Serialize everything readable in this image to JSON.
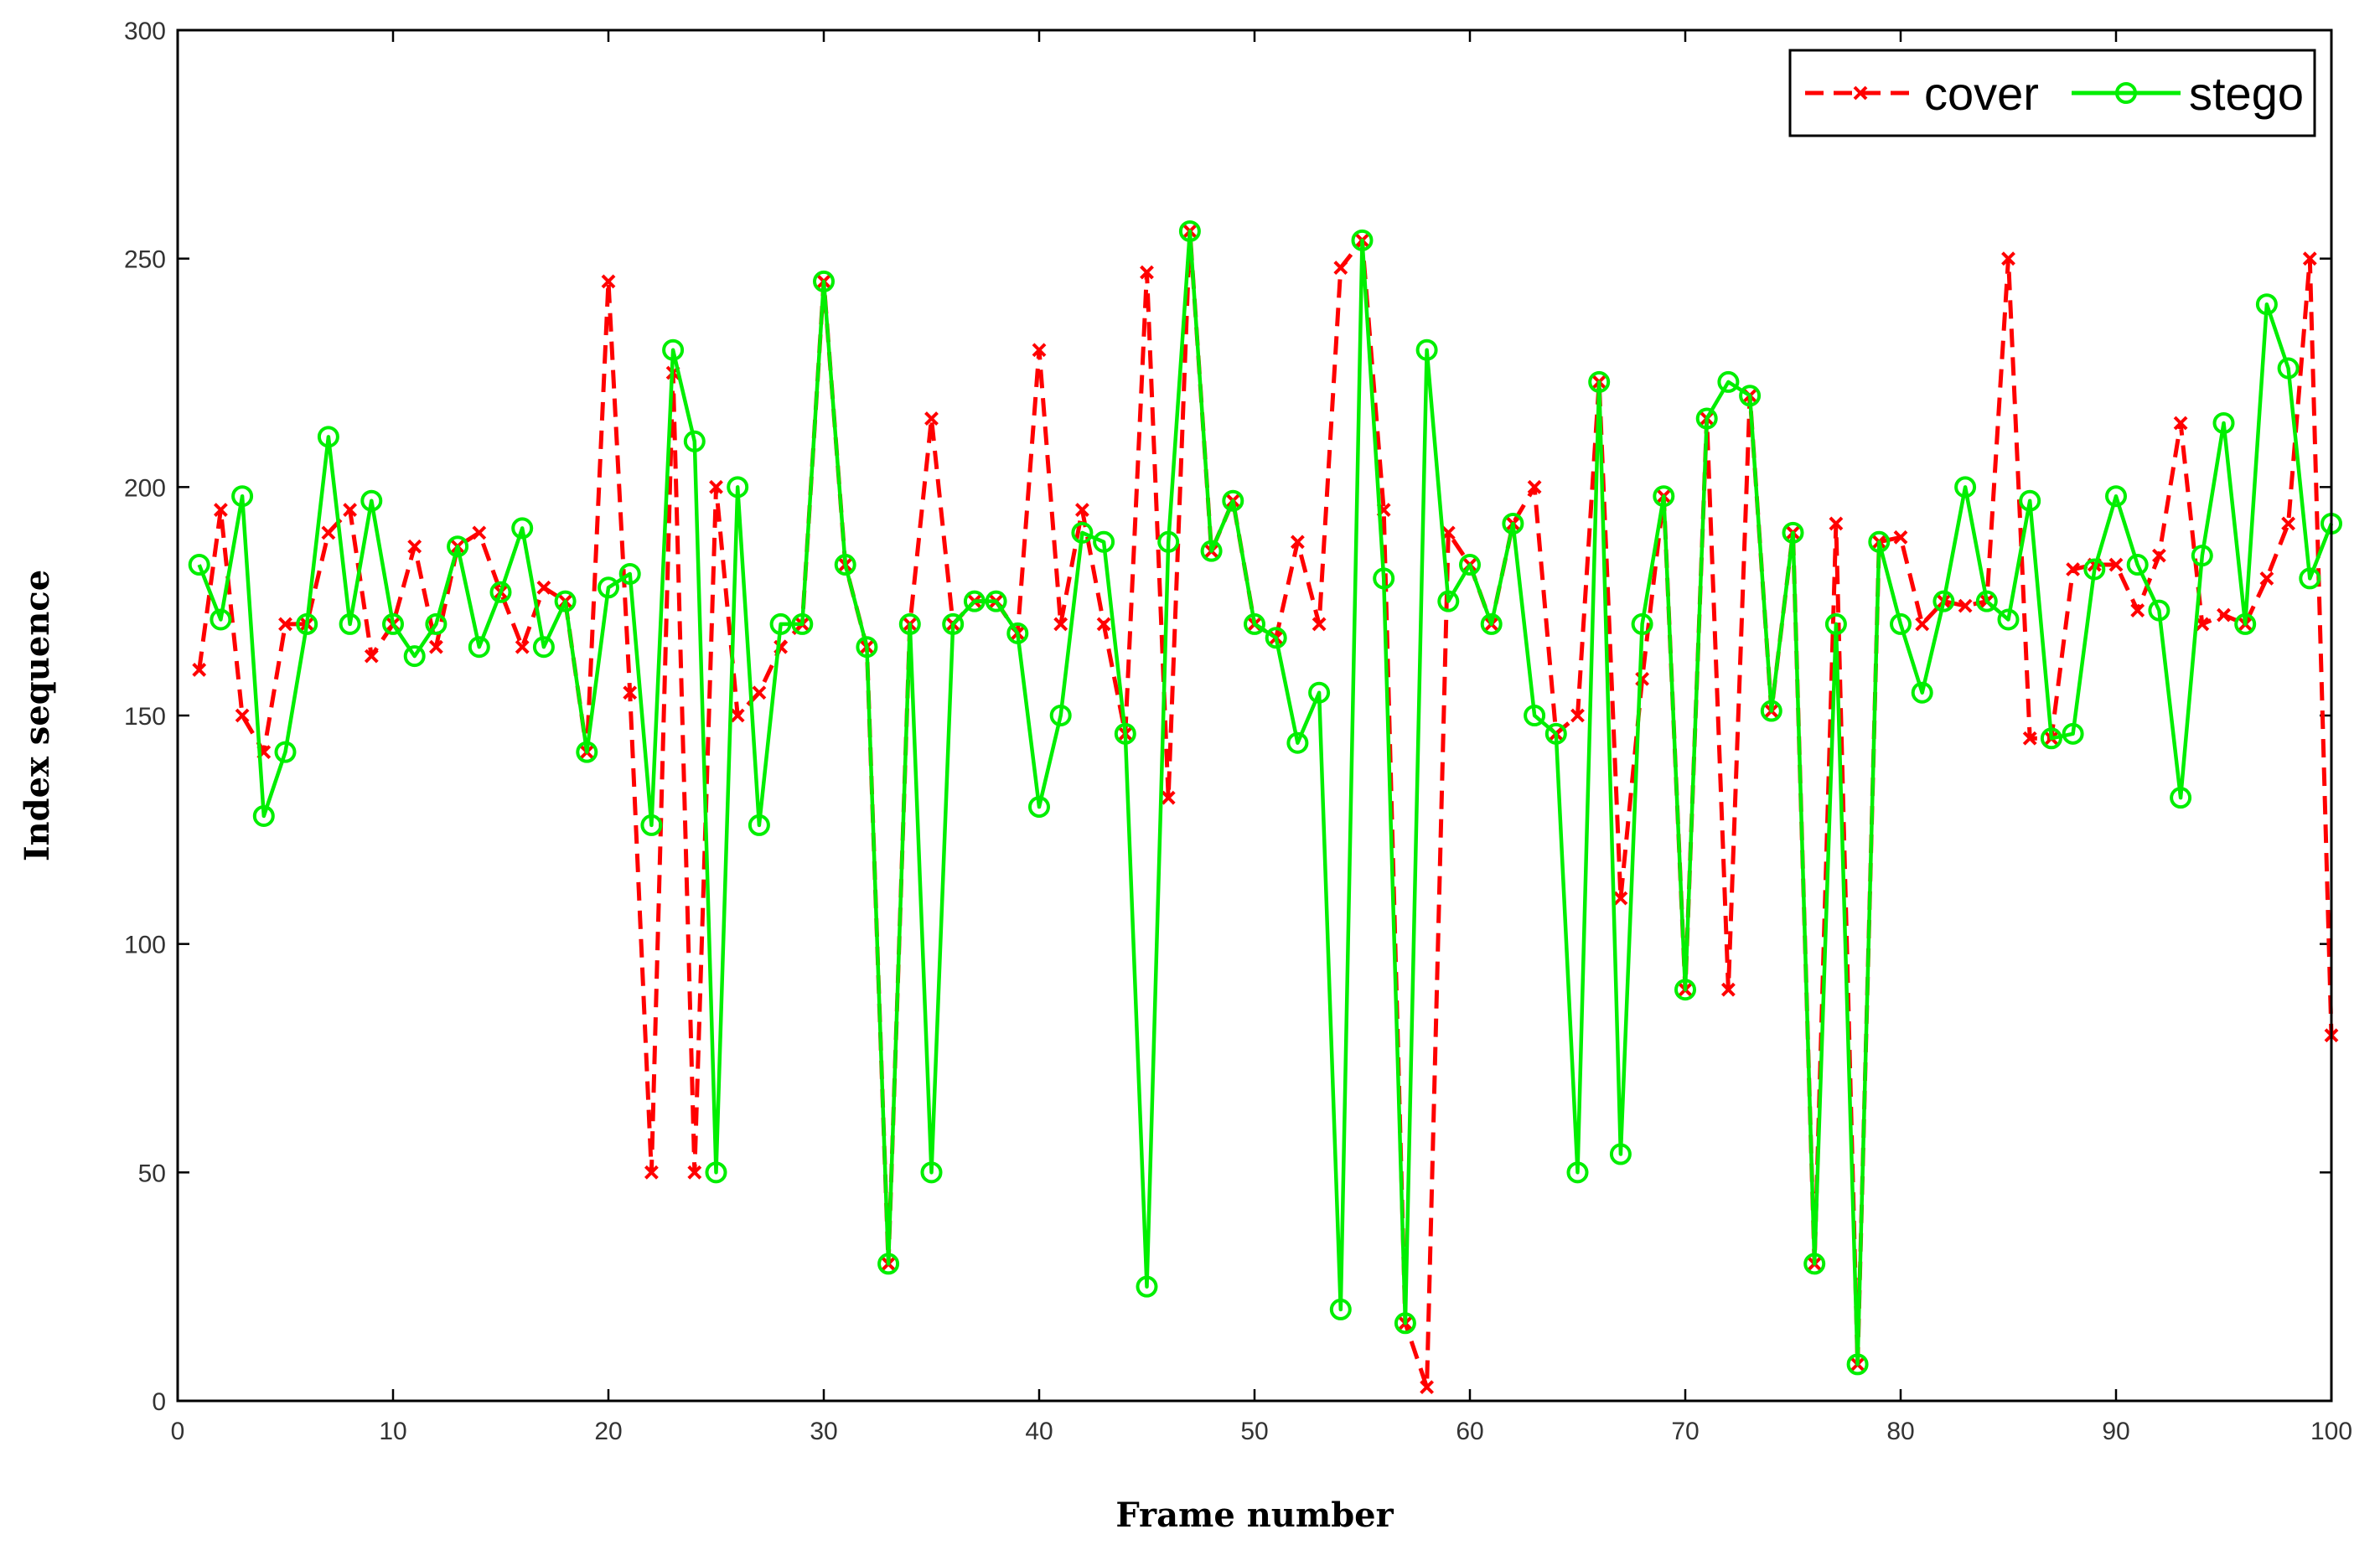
{
  "chart_data": {
    "type": "line",
    "xlabel": "Frame number",
    "ylabel": "Index sequence",
    "xlim": [
      0,
      100
    ],
    "ylim": [
      0,
      300
    ],
    "xticks": [
      0,
      10,
      20,
      30,
      40,
      50,
      60,
      70,
      80,
      90,
      100
    ],
    "yticks": [
      0,
      50,
      100,
      150,
      200,
      250,
      300
    ],
    "x_tick_labels": [
      "0",
      "10",
      "20",
      "30",
      "40",
      "50",
      "60",
      "70",
      "80",
      "90",
      "100"
    ],
    "y_tick_labels": [
      "0",
      "50",
      "100",
      "150",
      "200",
      "250",
      "300"
    ],
    "grid": false,
    "legend_position": "top-right",
    "colors": {
      "cover": "#ff0000",
      "stego": "#00ee00",
      "axis": "#000000"
    },
    "x": [
      1,
      2,
      3,
      4,
      5,
      6,
      7,
      8,
      9,
      10,
      11,
      12,
      13,
      14,
      15,
      16,
      17,
      18,
      19,
      20,
      21,
      22,
      23,
      24,
      25,
      26,
      27,
      28,
      29,
      30,
      31,
      32,
      33,
      34,
      35,
      36,
      37,
      38,
      39,
      40,
      41,
      42,
      43,
      44,
      45,
      46,
      47,
      48,
      49,
      50,
      51,
      52,
      53,
      54,
      55,
      56,
      57,
      58,
      59,
      60,
      61,
      62,
      63,
      64,
      65,
      66,
      67,
      68,
      69,
      70,
      71,
      72,
      73,
      74,
      75,
      76,
      77,
      78,
      79,
      80,
      81,
      82,
      83,
      84,
      85,
      86,
      87,
      88,
      89,
      90,
      91,
      92,
      93,
      94,
      95,
      96,
      97,
      98,
      99,
      100
    ],
    "series": [
      {
        "name": "cover",
        "style": "dashed",
        "marker": "x",
        "values": [
          160,
          195,
          150,
          142,
          170,
          170,
          190,
          195,
          163,
          170,
          187,
          165,
          187,
          190,
          177,
          165,
          178,
          175,
          142,
          245,
          155,
          50,
          225,
          50,
          200,
          150,
          155,
          165,
          170,
          245,
          183,
          165,
          30,
          170,
          215,
          170,
          175,
          175,
          168,
          230,
          170,
          195,
          170,
          146,
          247,
          132,
          256,
          186,
          197,
          170,
          167,
          188,
          170,
          248,
          254,
          195,
          17,
          3,
          190,
          183,
          170,
          192,
          200,
          146,
          150,
          223,
          110,
          158,
          198,
          90,
          215,
          90,
          220,
          151,
          190,
          30,
          192,
          8,
          188,
          189,
          170,
          175,
          174,
          175,
          250,
          145,
          145,
          182,
          183,
          183,
          173,
          185,
          214,
          170,
          172,
          170,
          180,
          192,
          250,
          80
        ]
      },
      {
        "name": "stego",
        "style": "solid",
        "marker": "o",
        "values": [
          183,
          171,
          198,
          128,
          142,
          170,
          211,
          170,
          197,
          170,
          163,
          170,
          187,
          165,
          177,
          191,
          165,
          175,
          142,
          178,
          181,
          126,
          230,
          210,
          50,
          200,
          126,
          170,
          170,
          245,
          183,
          165,
          30,
          170,
          50,
          170,
          175,
          175,
          168,
          130,
          150,
          190,
          188,
          146,
          25,
          188,
          256,
          186,
          197,
          170,
          167,
          144,
          155,
          20,
          254,
          180,
          17,
          230,
          175,
          183,
          170,
          192,
          150,
          146,
          50,
          223,
          54,
          170,
          198,
          90,
          215,
          223,
          220,
          151,
          190,
          30,
          170,
          8,
          188,
          170,
          155,
          175,
          200,
          175,
          171,
          197,
          145,
          146,
          182,
          198,
          183,
          173,
          132,
          185,
          214,
          170,
          240,
          226,
          180,
          192
        ]
      }
    ]
  }
}
